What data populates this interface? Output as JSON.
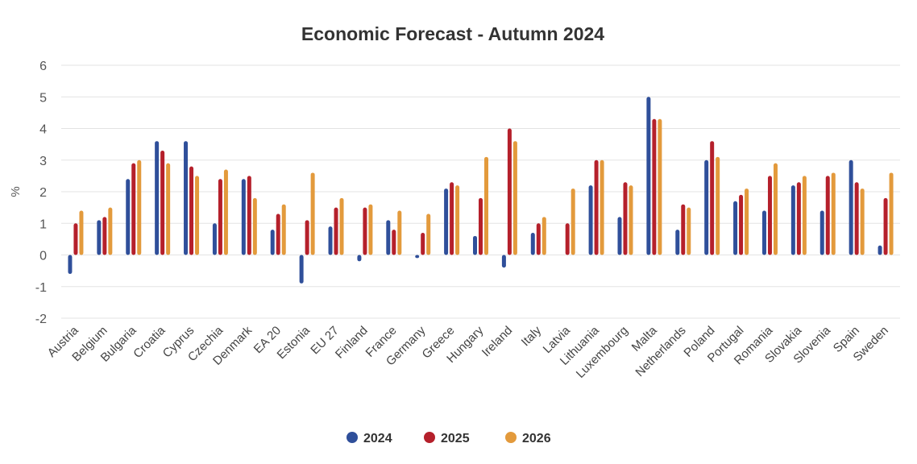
{
  "chart_data": {
    "type": "bar",
    "title": "Economic Forecast - Autumn 2024",
    "xlabel": "",
    "ylabel": "%",
    "ylim": [
      -2,
      6
    ],
    "yticks": [
      -2,
      -1,
      0,
      1,
      2,
      3,
      4,
      5,
      6
    ],
    "grid": true,
    "legend_position": "bottom",
    "categories": [
      "Austria",
      "Belgium",
      "Bulgaria",
      "Croatia",
      "Cyprus",
      "Czechia",
      "Denmark",
      "EA 20",
      "Estonia",
      "EU 27",
      "Finland",
      "France",
      "Germany",
      "Greece",
      "Hungary",
      "Ireland",
      "Italy",
      "Latvia",
      "Lithuania",
      "Luxembourg",
      "Malta",
      "Netherlands",
      "Poland",
      "Portugal",
      "Romania",
      "Slovakia",
      "Slovenia",
      "Spain",
      "Sweden"
    ],
    "series": [
      {
        "name": "2024",
        "color": "#2f4f9a",
        "values": [
          -0.6,
          1.1,
          2.4,
          3.6,
          3.6,
          1.0,
          2.4,
          0.8,
          -0.9,
          0.9,
          -0.2,
          1.1,
          -0.1,
          2.1,
          0.6,
          -0.4,
          0.7,
          0.0,
          2.2,
          1.2,
          5.0,
          0.8,
          3.0,
          1.7,
          1.4,
          2.2,
          1.4,
          3.0,
          0.3
        ]
      },
      {
        "name": "2025",
        "color": "#b5202b",
        "values": [
          1.0,
          1.2,
          2.9,
          3.3,
          2.8,
          2.4,
          2.5,
          1.3,
          1.1,
          1.5,
          1.5,
          0.8,
          0.7,
          2.3,
          1.8,
          4.0,
          1.0,
          1.0,
          3.0,
          2.3,
          4.3,
          1.6,
          3.6,
          1.9,
          2.5,
          2.3,
          2.5,
          2.3,
          1.8
        ]
      },
      {
        "name": "2026",
        "color": "#e39a3c",
        "values": [
          1.4,
          1.5,
          3.0,
          2.9,
          2.5,
          2.7,
          1.8,
          1.6,
          2.6,
          1.8,
          1.6,
          1.4,
          1.3,
          2.2,
          3.1,
          3.6,
          1.2,
          2.1,
          3.0,
          2.2,
          4.3,
          1.5,
          3.1,
          2.1,
          2.9,
          2.5,
          2.6,
          2.1,
          2.6
        ]
      }
    ]
  }
}
